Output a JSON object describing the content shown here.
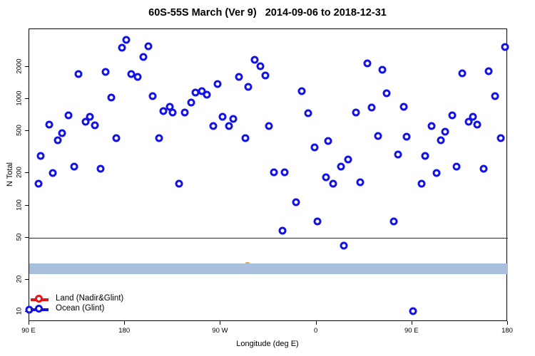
{
  "chart_data": {
    "type": "scatter",
    "title": "60S-55S March (Ver 9)   2014-09-06 to 2018-12-31",
    "xlabel": "Longitude (deg E)",
    "ylabel": "N Total",
    "x_axis": {
      "min": 90,
      "max": 540,
      "note": "longitude axis wraps: 90E to 180 to 90W to 0 to 90E to 180",
      "ticks": [
        {
          "pos": 90,
          "label": "90 E"
        },
        {
          "pos": 180,
          "label": "180"
        },
        {
          "pos": 270,
          "label": "90 W"
        },
        {
          "pos": 360,
          "label": "0"
        },
        {
          "pos": 450,
          "label": "90 E"
        },
        {
          "pos": 540,
          "label": "180"
        }
      ]
    },
    "y_axis": {
      "scale": "log",
      "min": 8,
      "max": 4500,
      "ticks": [
        {
          "value": 10,
          "label": "10"
        },
        {
          "value": 20,
          "label": "20"
        },
        {
          "value": 50,
          "label": "50"
        },
        {
          "value": 100,
          "label": "100"
        },
        {
          "value": 200,
          "label": "200"
        },
        {
          "value": 500,
          "label": "500"
        },
        {
          "value": 1000,
          "label": "1000"
        },
        {
          "value": 2000,
          "label": "2000"
        }
      ]
    },
    "reference_line": {
      "value": 50,
      "color": "#262626"
    },
    "band": {
      "y_low": 22.6,
      "y_high": 28.3,
      "color": "#a8bedd"
    },
    "hidden_marker": {
      "x": 295,
      "y": 28,
      "color": "#f0a83c"
    },
    "legend": {
      "position": "bottom-left",
      "items": [
        {
          "label": "Land (Nadir&Glint)",
          "color": "#e81414",
          "points_visible": 0
        },
        {
          "label": "Ocean (Glint)",
          "color": "#1212e6",
          "points_visible": 89
        }
      ]
    },
    "series": [
      {
        "name": "Ocean (Glint)",
        "color": "#1212e6",
        "marker": "open-circle",
        "points": [
          [
            181,
            3600
          ],
          [
            177,
            3050
          ],
          [
            202,
            3110
          ],
          [
            197,
            2500
          ],
          [
            136,
            1720
          ],
          [
            162,
            1800
          ],
          [
            186,
            1710
          ],
          [
            192,
            1620
          ],
          [
            167,
            1030
          ],
          [
            206,
            1060
          ],
          [
            216,
            770
          ],
          [
            222,
            850
          ],
          [
            225,
            750
          ],
          [
            236,
            750
          ],
          [
            242,
            920
          ],
          [
            246,
            1140
          ],
          [
            127,
            705
          ],
          [
            143,
            610
          ],
          [
            147,
            680
          ],
          [
            152,
            566
          ],
          [
            109,
            570
          ],
          [
            121,
            480
          ],
          [
            117,
            410
          ],
          [
            172,
            430
          ],
          [
            212,
            430
          ],
          [
            101,
            290
          ],
          [
            112,
            200
          ],
          [
            132,
            230
          ],
          [
            157,
            220
          ],
          [
            99,
            160
          ],
          [
            231,
            160
          ],
          [
            90,
            10.4
          ],
          [
            302,
            2320
          ],
          [
            307,
            2040
          ],
          [
            312,
            1660
          ],
          [
            287,
            1600
          ],
          [
            267,
            1390
          ],
          [
            296,
            1290
          ],
          [
            252,
            1180
          ],
          [
            257,
            1090
          ],
          [
            272,
            680
          ],
          [
            282,
            650
          ],
          [
            263,
            560
          ],
          [
            278,
            560
          ],
          [
            315,
            560
          ],
          [
            293,
            430
          ],
          [
            346,
            1180
          ],
          [
            352,
            730
          ],
          [
            371,
            405
          ],
          [
            358,
            350
          ],
          [
            383,
            230
          ],
          [
            320,
            205
          ],
          [
            330,
            205
          ],
          [
            369,
            185
          ],
          [
            376,
            160
          ],
          [
            341,
            107
          ],
          [
            361,
            71
          ],
          [
            328,
            58
          ],
          [
            386,
            42
          ],
          [
            390,
            270
          ],
          [
            408,
            2170
          ],
          [
            422,
            1890
          ],
          [
            497,
            1730
          ],
          [
            522,
            1820
          ],
          [
            426,
            1130
          ],
          [
            528,
            1060
          ],
          [
            412,
            830
          ],
          [
            442,
            840
          ],
          [
            397,
            750
          ],
          [
            488,
            700
          ],
          [
            507,
            680
          ],
          [
            503,
            610
          ],
          [
            511,
            570
          ],
          [
            468,
            560
          ],
          [
            481,
            490
          ],
          [
            477,
            410
          ],
          [
            533,
            430
          ],
          [
            418,
            450
          ],
          [
            445,
            445
          ],
          [
            437,
            300
          ],
          [
            462,
            290
          ],
          [
            492,
            230
          ],
          [
            517,
            220
          ],
          [
            473,
            200
          ],
          [
            537,
            3100
          ],
          [
            401,
            165
          ],
          [
            459,
            160
          ],
          [
            433,
            71
          ],
          [
            451,
            10.2
          ]
        ]
      }
    ]
  }
}
